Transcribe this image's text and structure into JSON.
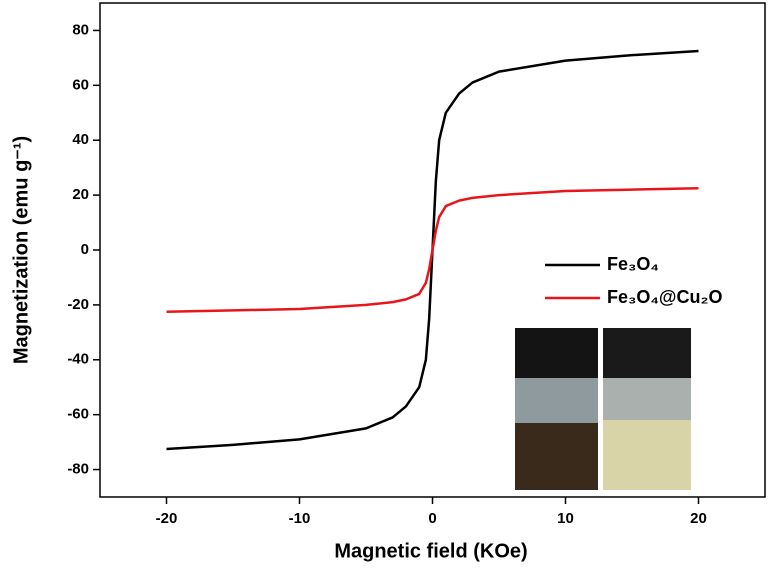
{
  "chart_data": {
    "type": "line",
    "x_label": "Magnetic field (KOe)",
    "y_label": "Magnetization (emu g⁻¹)",
    "x": [
      -20,
      -15,
      -10,
      -5,
      -3,
      -2,
      -1,
      -0.5,
      -0.25,
      0,
      0.25,
      0.5,
      1,
      2,
      3,
      5,
      10,
      15,
      20
    ],
    "series": [
      {
        "name": "Fe₃O₄",
        "color": "#000000",
        "values": [
          -72.5,
          -71,
          -69,
          -65,
          -61,
          -57,
          -50,
          -40,
          -25,
          0,
          25,
          40,
          50,
          57,
          61,
          65,
          69,
          71,
          72.5
        ]
      },
      {
        "name": "Fe₃O₄@Cu₂O",
        "color": "#e8151b",
        "values": [
          -22.5,
          -22,
          -21.5,
          -20,
          -19,
          -18,
          -16,
          -12,
          -7,
          0,
          7,
          12,
          16,
          18,
          19,
          20,
          21.5,
          22,
          22.5
        ]
      }
    ],
    "xlim": [
      -25,
      25
    ],
    "ylim": [
      -90,
      90
    ],
    "xticks": [
      -20,
      -10,
      0,
      10,
      20
    ],
    "yticks": [
      -80,
      -60,
      -40,
      -20,
      0,
      20,
      40,
      60,
      80
    ],
    "legend": "right"
  }
}
